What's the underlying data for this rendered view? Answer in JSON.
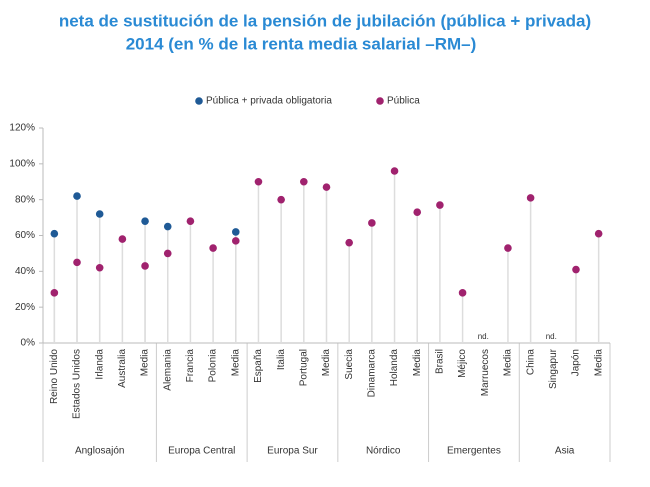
{
  "chart_data": {
    "type": "dot",
    "title": "neta de sustitución de la pensión de jubilación (pública + privada)",
    "subtitle": "2014 (en % de la renta media salarial –RM–)",
    "groups": [
      {
        "name": "Anglosajón",
        "categories": [
          "Reino Unido",
          "Estados Unidos",
          "Irlanda",
          "Australia",
          "Media"
        ]
      },
      {
        "name": "Europa Central",
        "categories": [
          "Alemania",
          "Francia",
          "Polonia",
          "Media"
        ]
      },
      {
        "name": "Europa Sur",
        "categories": [
          "España",
          "Italia",
          "Portugal",
          "Media"
        ]
      },
      {
        "name": "Nórdico",
        "categories": [
          "Suecia",
          "Dinamarca",
          "Holanda",
          "Media"
        ]
      },
      {
        "name": "Emergentes",
        "categories": [
          "Brasil",
          "Méjico",
          "Marruecos",
          "Media"
        ]
      },
      {
        "name": "Asia",
        "categories": [
          "China",
          "Singapur",
          "Japón",
          "Media"
        ]
      }
    ],
    "series": [
      {
        "name": "Pública + privada obligatoria",
        "color": "#1f5a96",
        "values": [
          61,
          82,
          72,
          null,
          68,
          65,
          null,
          null,
          62,
          null,
          null,
          null,
          null,
          null,
          null,
          null,
          null,
          null,
          null,
          null,
          null,
          null,
          null,
          null,
          null
        ]
      },
      {
        "name": "Pública",
        "color": "#a0226e",
        "values": [
          28,
          45,
          42,
          58,
          43,
          50,
          68,
          53,
          57,
          90,
          80,
          90,
          87,
          56,
          67,
          96,
          73,
          77,
          28,
          null,
          53,
          81,
          null,
          41,
          61
        ],
        "value_labels": [
          null,
          null,
          null,
          null,
          null,
          null,
          null,
          null,
          null,
          null,
          null,
          null,
          null,
          null,
          null,
          null,
          null,
          null,
          null,
          "nd.",
          null,
          null,
          "nd.",
          null,
          null
        ]
      }
    ],
    "ylim": [
      0,
      120
    ],
    "yticks": [
      {
        "value": 0,
        "label": "0%"
      },
      {
        "value": 20,
        "label": "20%"
      },
      {
        "value": 40,
        "label": "40%"
      },
      {
        "value": 60,
        "label": "60%"
      },
      {
        "value": 80,
        "label": "80%"
      },
      {
        "value": 100,
        "label": "100%"
      },
      {
        "value": 120,
        "label": "120%"
      }
    ],
    "grid": false,
    "legend": "top"
  }
}
